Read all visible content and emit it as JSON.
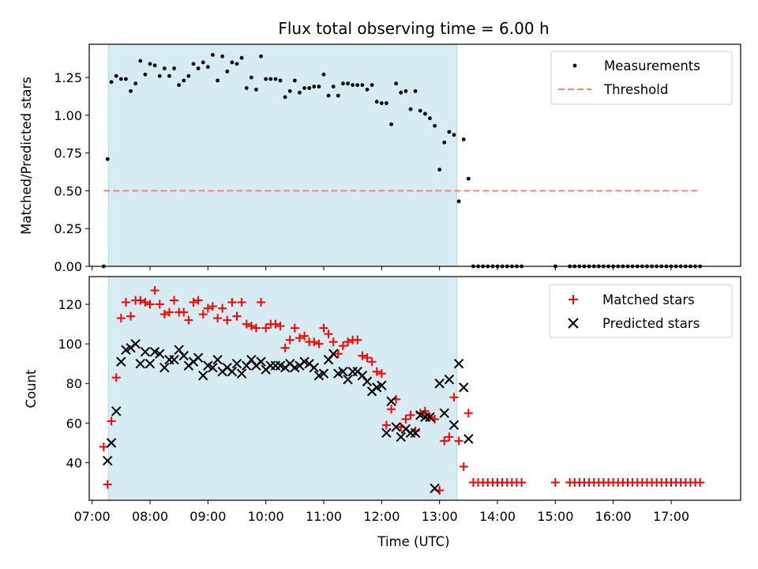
{
  "chart_data": [
    {
      "type": "scatter",
      "title": "Flux total observing time = 6.00 h",
      "xlabel": "",
      "ylabel": "Matched/Predicted stars",
      "xlim": [
        6.95,
        18.2
      ],
      "ylim": [
        0.0,
        1.47
      ],
      "yticks": [
        0.0,
        0.25,
        0.5,
        0.75,
        1.0,
        1.25
      ],
      "ytick_labels": [
        "0.00",
        "0.25",
        "0.50",
        "0.75",
        "1.00",
        "1.25"
      ],
      "shaded_span": {
        "x_start": 7.28,
        "x_end": 13.3,
        "color": "#add8e6"
      },
      "legend_position": "top-right",
      "series": [
        {
          "name": "Measurements",
          "marker": "dot",
          "color": "#000000",
          "x": [
            7.2,
            7.267,
            7.333,
            7.417,
            7.5,
            7.583,
            7.667,
            7.75,
            7.833,
            7.917,
            8.0,
            8.083,
            8.167,
            8.25,
            8.333,
            8.417,
            8.5,
            8.583,
            8.667,
            8.75,
            8.833,
            8.917,
            9.0,
            9.083,
            9.167,
            9.25,
            9.333,
            9.417,
            9.5,
            9.583,
            9.667,
            9.75,
            9.833,
            9.917,
            10.0,
            10.083,
            10.167,
            10.25,
            10.333,
            10.417,
            10.5,
            10.583,
            10.667,
            10.75,
            10.833,
            10.917,
            11.0,
            11.083,
            11.167,
            11.25,
            11.333,
            11.417,
            11.5,
            11.583,
            11.667,
            11.75,
            11.833,
            11.917,
            12.0,
            12.083,
            12.167,
            12.25,
            12.333,
            12.417,
            12.5,
            12.583,
            12.667,
            12.75,
            12.833,
            12.917,
            13.0,
            13.083,
            13.167,
            13.25,
            13.333,
            13.417,
            13.5,
            13.583,
            13.667,
            13.75,
            13.833,
            13.917,
            14.0,
            14.083,
            14.167,
            14.25,
            14.333,
            14.417,
            15.0,
            15.25,
            15.333,
            15.417,
            15.5,
            15.583,
            15.667,
            15.75,
            15.833,
            15.917,
            16.0,
            16.083,
            16.167,
            16.25,
            16.333,
            16.417,
            16.5,
            16.583,
            16.667,
            16.75,
            16.833,
            16.917,
            17.0,
            17.083,
            17.167,
            17.25,
            17.333,
            17.417,
            17.5
          ],
          "y": [
            0.0,
            0.71,
            1.22,
            1.26,
            1.24,
            1.24,
            1.16,
            1.21,
            1.36,
            1.27,
            1.34,
            1.33,
            1.26,
            1.31,
            1.26,
            1.31,
            1.2,
            1.23,
            1.26,
            1.34,
            1.31,
            1.35,
            1.32,
            1.4,
            1.23,
            1.39,
            1.29,
            1.35,
            1.34,
            1.38,
            1.18,
            1.25,
            1.17,
            1.39,
            1.24,
            1.24,
            1.24,
            1.23,
            1.12,
            1.16,
            1.23,
            1.15,
            1.18,
            1.18,
            1.19,
            1.19,
            1.27,
            1.13,
            1.19,
            1.13,
            1.21,
            1.21,
            1.2,
            1.2,
            1.2,
            1.17,
            1.2,
            1.09,
            1.08,
            1.08,
            0.94,
            1.21,
            1.15,
            1.16,
            1.04,
            1.16,
            1.03,
            1.01,
            0.98,
            0.93,
            0.64,
            0.82,
            0.89,
            0.87,
            0.43,
            0.84,
            0.58,
            0.0,
            0.0,
            0.0,
            0.0,
            0.0,
            0.0,
            0.0,
            0.0,
            0.0,
            0.0,
            0.0,
            0.0,
            0.0,
            0.0,
            0.0,
            0.0,
            0.0,
            0.0,
            0.0,
            0.0,
            0.0,
            0.0,
            0.0,
            0.0,
            0.0,
            0.0,
            0.0,
            0.0,
            0.0,
            0.0,
            0.0,
            0.0,
            0.0,
            0.0,
            0.0,
            0.0,
            0.0,
            0.0,
            0.0,
            0.0
          ]
        },
        {
          "name": "Threshold",
          "marker": "dashed-line",
          "color": "#ff7f7f",
          "x": [
            7.2,
            17.5
          ],
          "y": [
            0.5,
            0.5
          ]
        }
      ]
    },
    {
      "type": "scatter",
      "title": "",
      "xlabel": "Time (UTC)",
      "ylabel": "Count",
      "xlim": [
        6.95,
        18.2
      ],
      "ylim": [
        21,
        134
      ],
      "xticks": [
        7,
        8,
        9,
        10,
        11,
        12,
        13,
        14,
        15,
        16,
        17
      ],
      "xtick_labels": [
        "07:00",
        "08:00",
        "09:00",
        "10:00",
        "11:00",
        "12:00",
        "13:00",
        "14:00",
        "15:00",
        "16:00",
        "17:00"
      ],
      "yticks": [
        40,
        60,
        80,
        100,
        120
      ],
      "ytick_labels": [
        "40",
        "60",
        "80",
        "100",
        "120"
      ],
      "shaded_span": {
        "x_start": 7.28,
        "x_end": 13.3,
        "color": "#add8e6"
      },
      "legend_position": "top-right",
      "series": [
        {
          "name": "Matched stars",
          "marker": "plus",
          "color": "#ff0000",
          "x": [
            7.2,
            7.267,
            7.333,
            7.417,
            7.5,
            7.583,
            7.667,
            7.75,
            7.833,
            7.917,
            8.0,
            8.083,
            8.167,
            8.25,
            8.333,
            8.417,
            8.5,
            8.583,
            8.667,
            8.75,
            8.833,
            8.917,
            9.0,
            9.083,
            9.167,
            9.25,
            9.333,
            9.417,
            9.5,
            9.583,
            9.667,
            9.75,
            9.833,
            9.917,
            10.0,
            10.083,
            10.167,
            10.25,
            10.333,
            10.417,
            10.5,
            10.583,
            10.667,
            10.75,
            10.833,
            10.917,
            11.0,
            11.083,
            11.167,
            11.25,
            11.333,
            11.417,
            11.5,
            11.583,
            11.667,
            11.75,
            11.833,
            11.917,
            12.0,
            12.083,
            12.167,
            12.25,
            12.333,
            12.417,
            12.5,
            12.583,
            12.667,
            12.75,
            12.833,
            12.917,
            13.0,
            13.083,
            13.167,
            13.25,
            13.333,
            13.417,
            13.5,
            13.583,
            13.667,
            13.75,
            13.833,
            13.917,
            14.0,
            14.083,
            14.167,
            14.25,
            14.333,
            14.417,
            15.0,
            15.25,
            15.333,
            15.417,
            15.5,
            15.583,
            15.667,
            15.75,
            15.833,
            15.917,
            16.0,
            16.083,
            16.167,
            16.25,
            16.333,
            16.417,
            16.5,
            16.583,
            16.667,
            16.75,
            16.833,
            16.917,
            17.0,
            17.083,
            17.167,
            17.25,
            17.333,
            17.417,
            17.5
          ],
          "y": [
            48,
            29,
            61,
            83,
            113,
            121,
            114,
            122,
            122,
            121,
            120,
            127,
            120,
            115,
            116,
            122,
            116,
            116,
            112,
            121,
            122,
            115,
            118,
            119,
            113,
            118,
            112,
            121,
            114,
            121,
            110,
            109,
            108,
            121,
            108,
            110,
            110,
            109,
            98,
            102,
            108,
            103,
            104,
            101,
            101,
            100,
            108,
            105,
            101,
            95,
            99,
            101,
            102,
            102,
            94,
            93,
            91,
            86,
            85,
            59,
            67,
            72,
            58,
            62,
            64,
            56,
            65,
            66,
            63,
            62,
            26,
            51,
            53,
            73,
            51,
            38,
            65,
            30,
            30,
            30,
            30,
            30,
            30,
            30,
            30,
            30,
            30,
            30,
            30,
            30,
            30,
            30,
            30,
            30,
            30,
            30,
            30,
            30,
            30,
            30,
            30,
            30,
            30,
            30,
            30,
            30,
            30,
            30,
            30,
            30,
            30,
            30,
            30,
            30,
            30,
            30,
            30
          ]
        },
        {
          "name": "Predicted stars",
          "marker": "x",
          "color": "#000000",
          "x": [
            7.267,
            7.333,
            7.417,
            7.5,
            7.583,
            7.667,
            7.75,
            7.833,
            7.917,
            8.0,
            8.083,
            8.167,
            8.25,
            8.333,
            8.417,
            8.5,
            8.583,
            8.667,
            8.75,
            8.833,
            8.917,
            9.0,
            9.083,
            9.167,
            9.25,
            9.333,
            9.417,
            9.5,
            9.583,
            9.667,
            9.75,
            9.833,
            9.917,
            10.0,
            10.083,
            10.167,
            10.25,
            10.333,
            10.417,
            10.5,
            10.583,
            10.667,
            10.75,
            10.833,
            10.917,
            11.0,
            11.083,
            11.167,
            11.25,
            11.333,
            11.417,
            11.5,
            11.583,
            11.667,
            11.75,
            11.833,
            11.917,
            12.0,
            12.083,
            12.167,
            12.25,
            12.333,
            12.417,
            12.5,
            12.583,
            12.667,
            12.75,
            12.833,
            12.917,
            13.0,
            13.083,
            13.167,
            13.25,
            13.333,
            13.417,
            13.5
          ],
          "y": [
            41,
            50,
            66,
            91,
            97,
            98,
            100,
            90,
            96,
            90,
            96,
            95,
            88,
            92,
            92,
            97,
            94,
            89,
            91,
            93,
            84,
            89,
            88,
            92,
            86,
            88,
            86,
            90,
            85,
            89,
            92,
            89,
            91,
            87,
            89,
            89,
            89,
            88,
            90,
            88,
            89,
            91,
            90,
            88,
            84,
            85,
            92,
            95,
            85,
            86,
            82,
            86,
            86,
            84,
            81,
            76,
            78,
            79,
            55,
            71,
            58,
            53,
            57,
            55,
            55,
            64,
            63,
            63,
            27,
            80,
            65,
            82,
            59,
            90,
            78,
            52
          ]
        }
      ]
    }
  ]
}
